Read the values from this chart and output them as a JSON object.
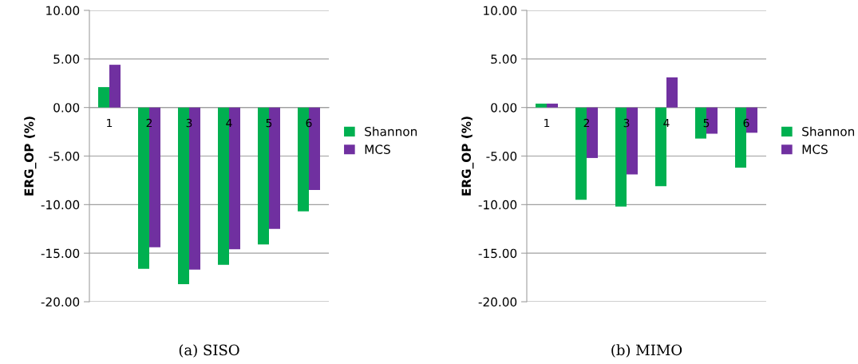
{
  "chart_data": [
    {
      "type": "bar",
      "ylabel": "ERG_OP (%)",
      "annotations": [
        "(a) SISO"
      ],
      "categories": [
        "1",
        "2",
        "3",
        "4",
        "5",
        "6"
      ],
      "series": [
        {
          "name": "Shannon",
          "color": "#00b050",
          "values": [
            2.1,
            -16.6,
            -18.2,
            -16.2,
            -14.1,
            -10.7
          ]
        },
        {
          "name": "MCS",
          "color": "#7030a0",
          "values": [
            4.4,
            -14.4,
            -16.7,
            -14.6,
            -12.5,
            -8.5
          ]
        }
      ],
      "ylim": [
        -20,
        10
      ],
      "yticks": [
        {
          "value": -20,
          "label": "-20.00"
        },
        {
          "value": -15,
          "label": "-15.00"
        },
        {
          "value": -10,
          "label": "-10.00"
        },
        {
          "value": -5,
          "label": "-5.00"
        },
        {
          "value": 0,
          "label": "0.00"
        },
        {
          "value": 5,
          "label": "5.00"
        },
        {
          "value": 10,
          "label": "10.00"
        }
      ],
      "grid": "y",
      "legend": "right"
    },
    {
      "type": "bar",
      "ylabel": "ERG_OP (%)",
      "annotations": [
        "(b) MIMO"
      ],
      "categories": [
        "1",
        "2",
        "3",
        "4",
        "5",
        "6"
      ],
      "series": [
        {
          "name": "Shannon",
          "color": "#00b050",
          "values": [
            0.4,
            -9.5,
            -10.2,
            -8.1,
            -3.2,
            -6.2
          ]
        },
        {
          "name": "MCS",
          "color": "#7030a0",
          "values": [
            0.4,
            -5.2,
            -6.9,
            3.1,
            -2.7,
            -2.6
          ]
        }
      ],
      "ylim": [
        -20,
        10
      ],
      "yticks": [
        {
          "value": -20,
          "label": "-20.00"
        },
        {
          "value": -15,
          "label": "-15.00"
        },
        {
          "value": -10,
          "label": "-10.00"
        },
        {
          "value": -5,
          "label": "-5.00"
        },
        {
          "value": 0,
          "label": "0.00"
        },
        {
          "value": 5,
          "label": "5.00"
        },
        {
          "value": 10,
          "label": "10.00"
        }
      ],
      "grid": "y",
      "legend": "right"
    }
  ]
}
